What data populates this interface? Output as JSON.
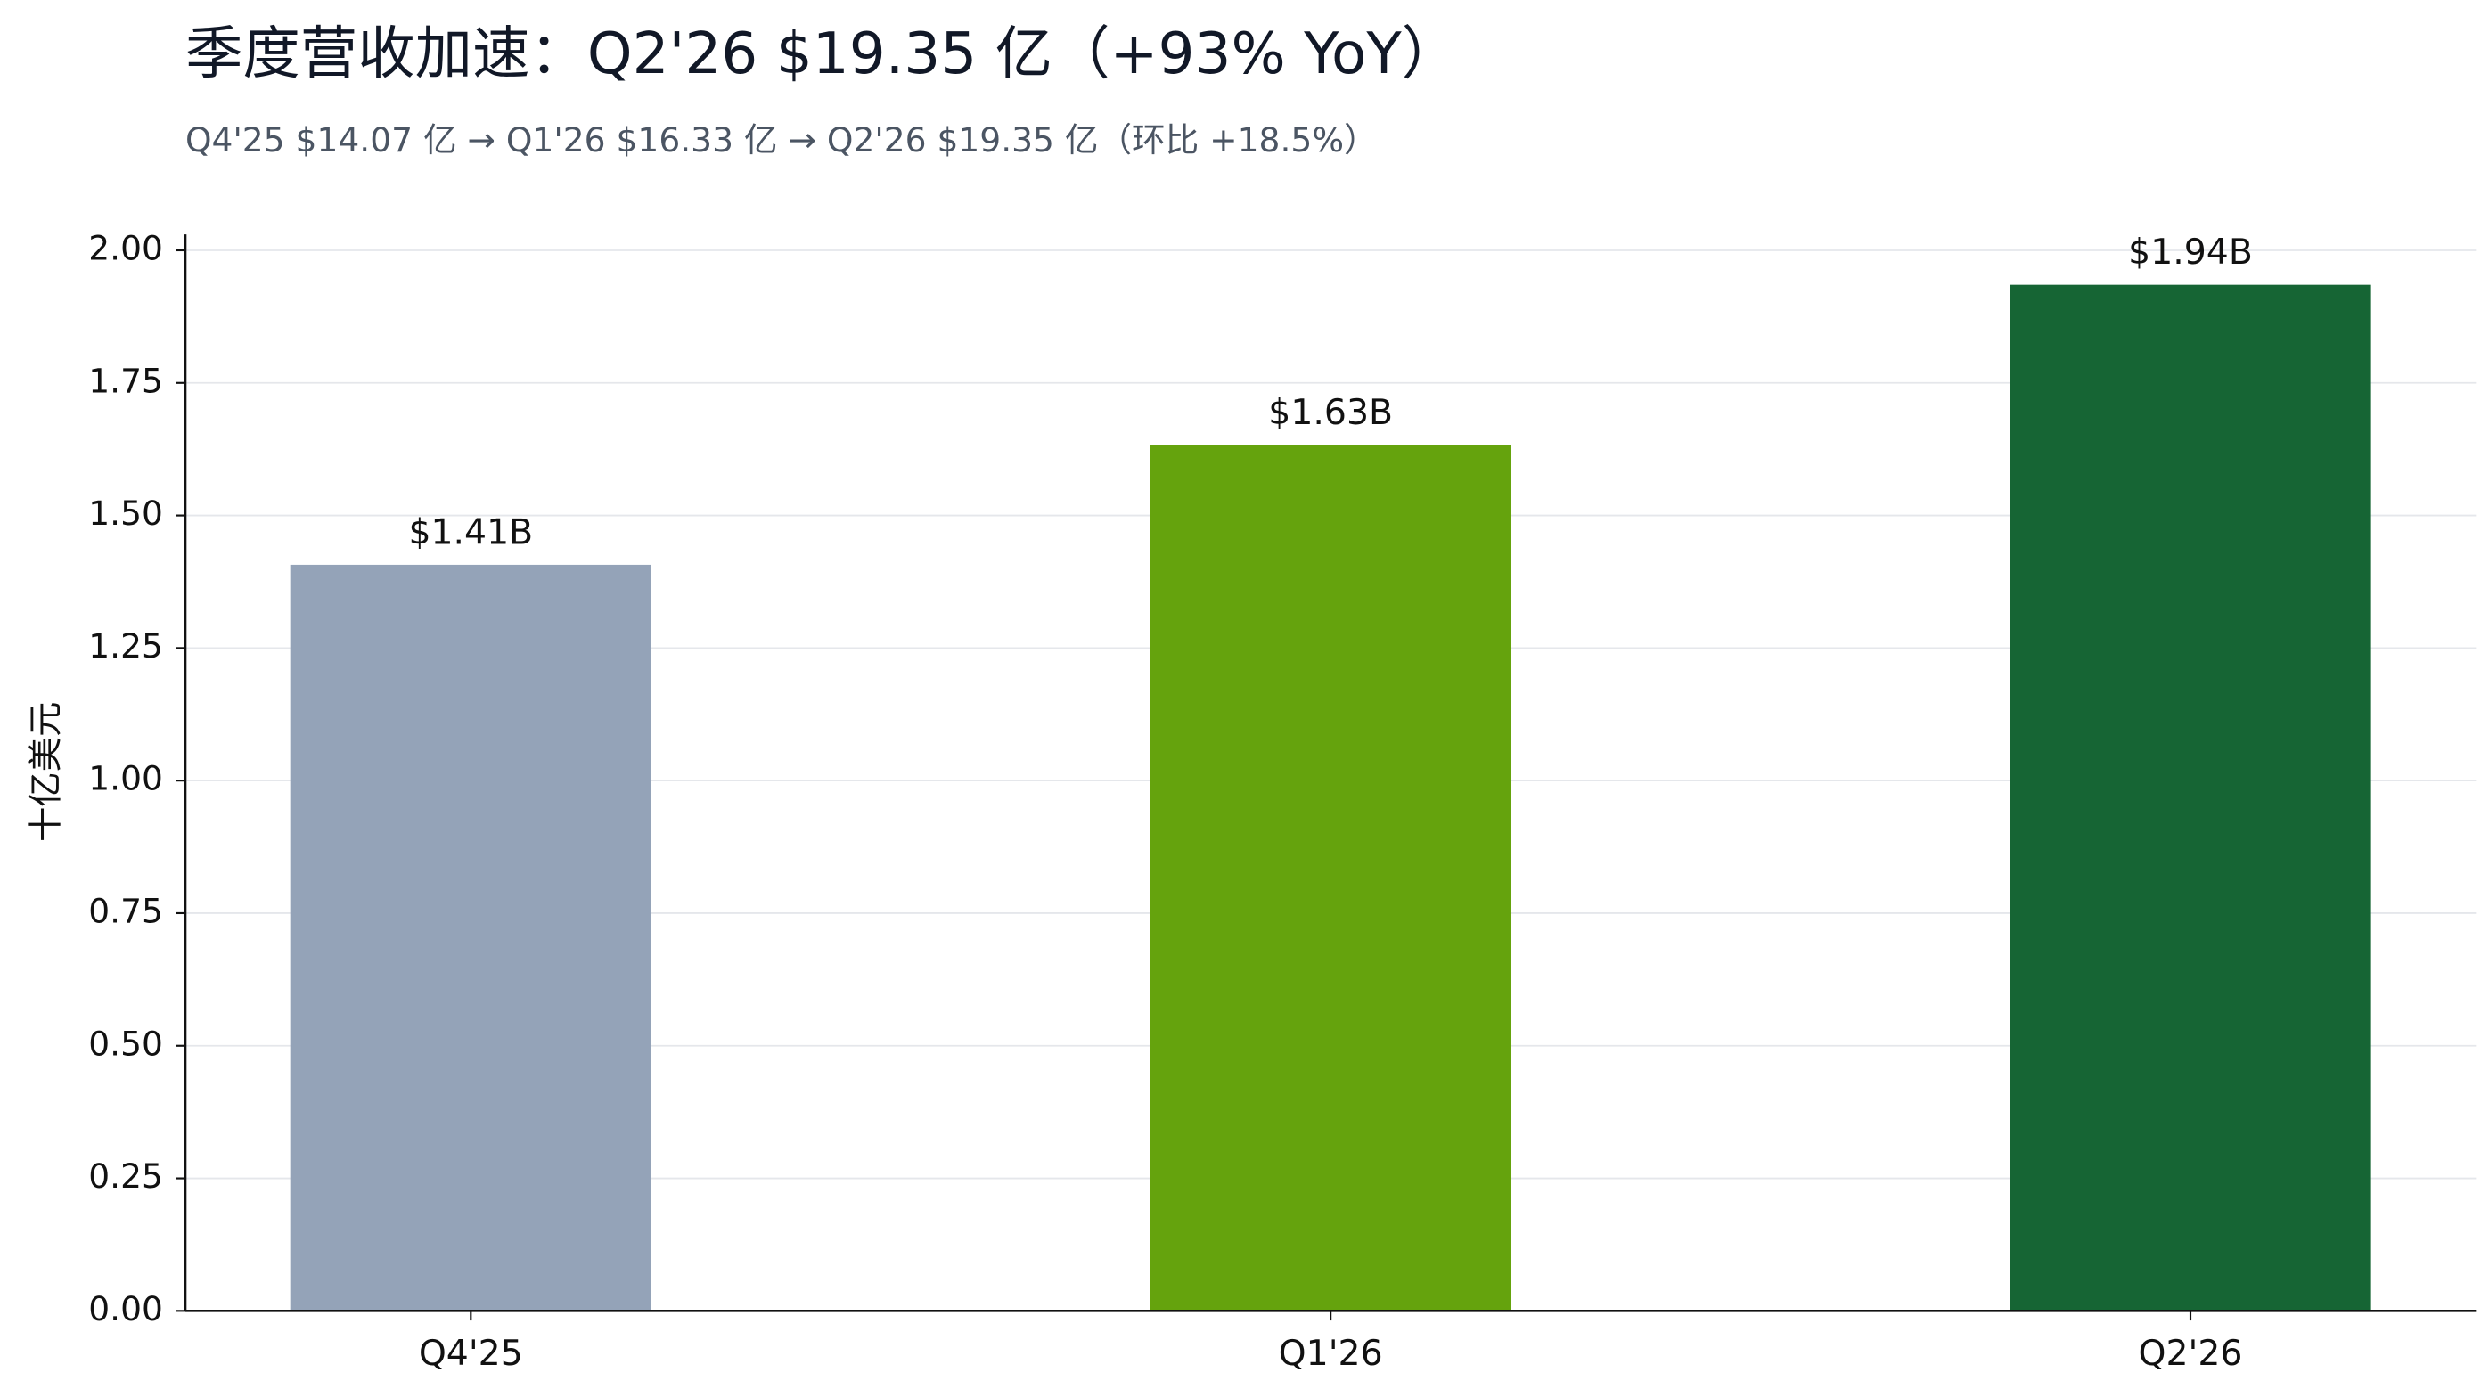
{
  "chart_data": {
    "type": "bar",
    "title": "季度营收加速：Q2'26 $19.35 亿（+93% YoY）",
    "subtitle": "Q4'25 $14.07 亿 → Q1'26 $16.33 亿 → Q2'26 $19.35 亿（环比 +18.5%）",
    "y_label": "十亿美元",
    "categories": [
      "Q4'25",
      "Q1'26",
      "Q2'26"
    ],
    "values": [
      1.407,
      1.633,
      1.935
    ],
    "value_labels": [
      "$1.41B",
      "$1.63B",
      "$1.94B"
    ],
    "colors": [
      "#94a3b8",
      "#65a30d",
      "#166534"
    ],
    "ylim": [
      0,
      2.03
    ],
    "yticks": [
      {
        "value": 0,
        "label": "0.00"
      },
      {
        "value": 0.25,
        "label": "0.25"
      },
      {
        "value": 0.5,
        "label": "0.50"
      },
      {
        "value": 0.75,
        "label": "0.75"
      },
      {
        "value": 1,
        "label": "1.00"
      },
      {
        "value": 1.25,
        "label": "1.25"
      },
      {
        "value": 1.5,
        "label": "1.50"
      },
      {
        "value": 1.75,
        "label": "1.75"
      },
      {
        "value": 2,
        "label": "2.00"
      }
    ],
    "grid": true
  }
}
